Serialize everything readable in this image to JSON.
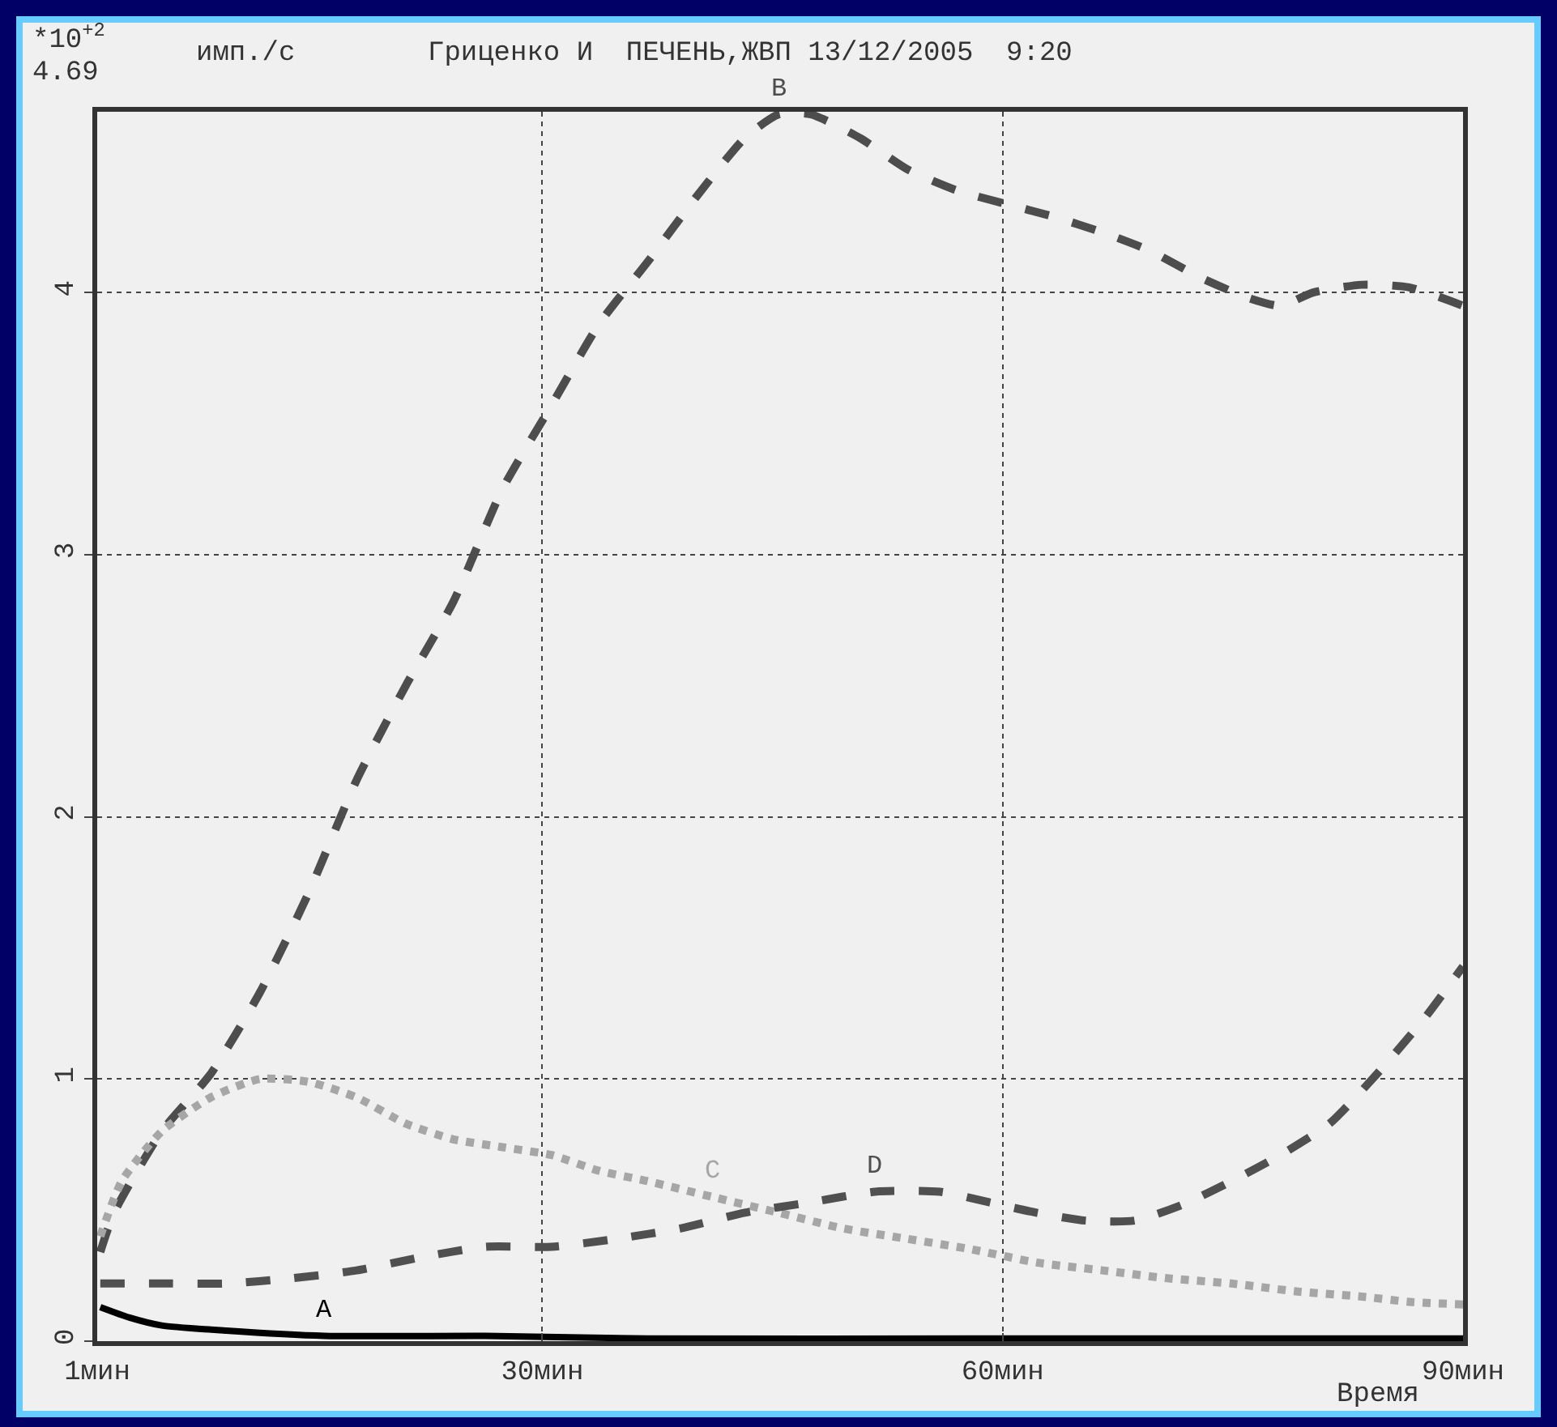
{
  "chart_data": {
    "type": "line",
    "title": "Гриценко И  ПЕЧЕНЬ,ЖВП 13/12/2005  9:20",
    "xlabel": "Время",
    "ylabel": "имп./с",
    "annotations": [
      "*10$^{+2}$",
      "4.69"
    ],
    "xlim": [
      1,
      90
    ],
    "xticks": [
      {
        "value": 1,
        "label": "1мин"
      },
      {
        "value": 30,
        "label": "30мин"
      },
      {
        "value": 60,
        "label": "60мин"
      },
      {
        "value": 90,
        "label": "90мин"
      }
    ],
    "ylim": [
      0,
      4.69
    ],
    "yticks": [
      0,
      1,
      2,
      3,
      4
    ],
    "grid": true,
    "legend": false,
    "series": [
      {
        "name": "A",
        "color": "#000000",
        "line_style": "solid",
        "x": [
          1.2,
          3.1,
          5.2,
          9.4,
          15.8,
          26.3,
          36.9,
          58,
          90
        ],
        "values": [
          0.13,
          0.09,
          0.06,
          0.04,
          0.02,
          0.02,
          0.01,
          0.01,
          0.01
        ]
      },
      {
        "name": "B",
        "color": "#4d4d4d",
        "line_style": "dashed",
        "x": [
          1.2,
          2.1,
          5.2,
          8.4,
          11.6,
          14.7,
          17.9,
          21.1,
          24.2,
          27.4,
          30.6,
          33.7,
          36.9,
          40.1,
          43.2,
          45.4,
          47.5,
          50.7,
          53.8,
          57,
          60.1,
          63.3,
          66.5,
          69.6,
          72.8,
          76,
          78.1,
          80.2,
          83.4,
          86.5,
          90
        ],
        "values": [
          0.34,
          0.49,
          0.8,
          1.02,
          1.33,
          1.7,
          2.14,
          2.5,
          2.82,
          3.25,
          3.57,
          3.88,
          4.12,
          4.37,
          4.59,
          4.68,
          4.68,
          4.59,
          4.47,
          4.39,
          4.34,
          4.29,
          4.23,
          4.16,
          4.06,
          3.98,
          3.95,
          4,
          4.03,
          4.02,
          3.95
        ]
      },
      {
        "name": "C",
        "color": "#a6a6a6",
        "line_style": "dotted",
        "x": [
          1.2,
          2.6,
          5.2,
          8.4,
          11.6,
          14.7,
          17.9,
          21.1,
          24.2,
          27.4,
          30.6,
          33.7,
          36.9,
          41.1,
          45.4,
          49.6,
          53.8,
          58,
          62.2,
          66.5,
          70.7,
          74.9,
          79.1,
          83.4,
          86.5,
          90
        ],
        "values": [
          0.4,
          0.61,
          0.8,
          0.93,
          1,
          0.99,
          0.93,
          0.83,
          0.77,
          0.74,
          0.71,
          0.65,
          0.61,
          0.55,
          0.49,
          0.43,
          0.39,
          0.35,
          0.3,
          0.27,
          0.24,
          0.22,
          0.19,
          0.17,
          0.15,
          0.14
        ]
      },
      {
        "name": "D",
        "color": "#505050",
        "line_style": "dashed",
        "x": [
          1.2,
          5.2,
          9.4,
          13.7,
          17.9,
          22.1,
          26.3,
          30.6,
          34.8,
          39,
          43.2,
          47.5,
          51.7,
          55.9,
          59.1,
          62.2,
          65.4,
          68.6,
          71.7,
          74.9,
          78.1,
          81.3,
          84.4,
          87.6,
          90
        ],
        "values": [
          0.22,
          0.22,
          0.22,
          0.24,
          0.27,
          0.32,
          0.36,
          0.36,
          0.39,
          0.43,
          0.49,
          0.53,
          0.57,
          0.57,
          0.53,
          0.49,
          0.46,
          0.46,
          0.52,
          0.61,
          0.71,
          0.83,
          1.02,
          1.24,
          1.43
        ]
      }
    ]
  }
}
